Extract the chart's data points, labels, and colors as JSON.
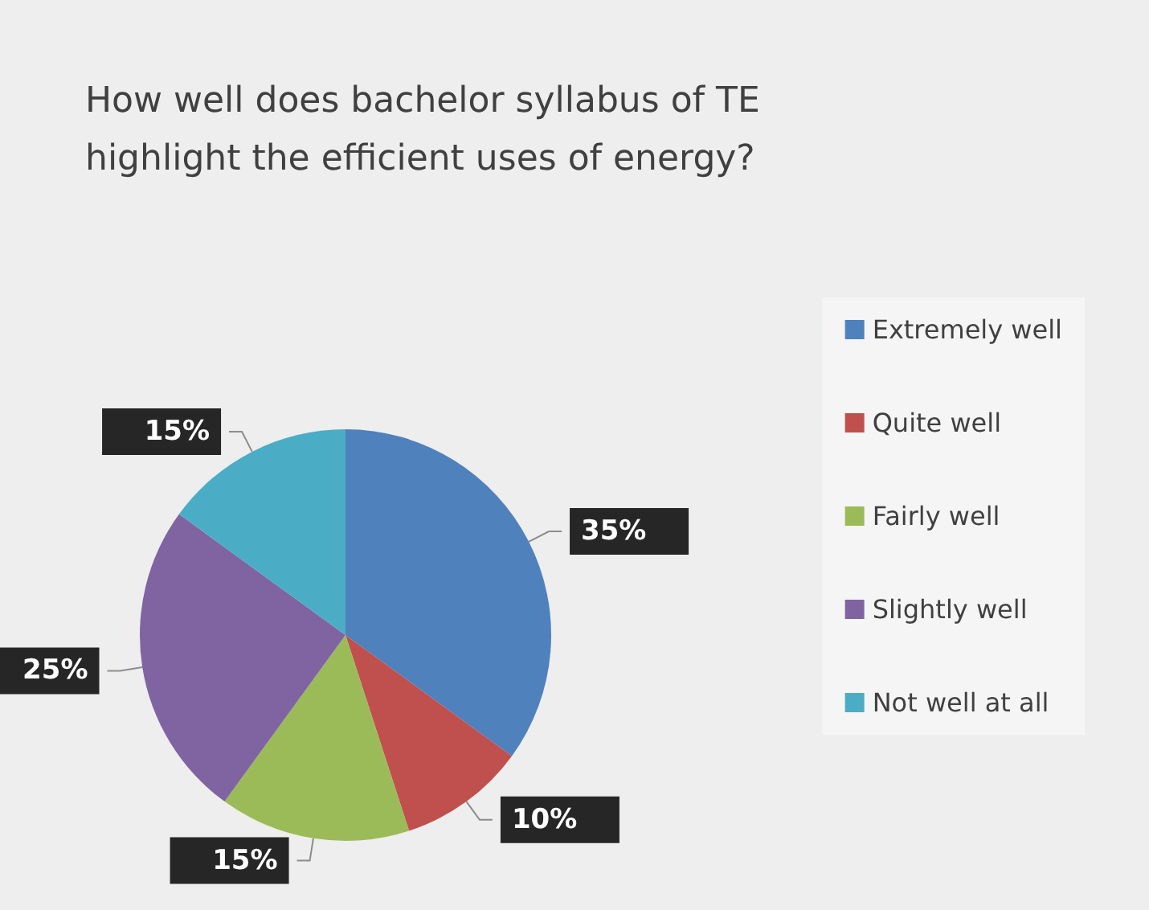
{
  "chart_data": {
    "type": "pie",
    "title": "How well does bachelor syllabus of TE highlight the efficient uses of energy?",
    "categories": [
      "Extremely well",
      "Quite well",
      "Fairly well",
      "Slightly well",
      "Not well at all"
    ],
    "values": [
      35,
      10,
      15,
      25,
      15
    ],
    "colors": [
      "#4f81bd",
      "#c0504d",
      "#9bbb59",
      "#8064a2",
      "#4bacc6"
    ],
    "value_labels": [
      "35%",
      "10%",
      "15%",
      "25%",
      "15%"
    ],
    "legend": "right"
  }
}
